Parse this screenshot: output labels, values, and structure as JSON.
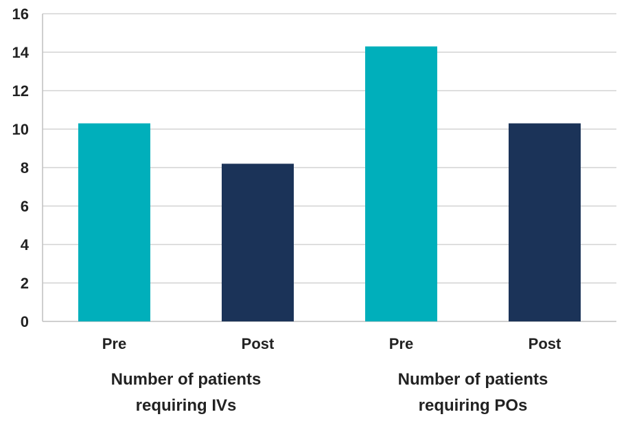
{
  "chart_data": {
    "type": "bar",
    "title": "",
    "xlabel": "",
    "ylabel": "",
    "ylim": [
      0,
      16
    ],
    "yticks": [
      0,
      2,
      4,
      6,
      8,
      10,
      12,
      14,
      16
    ],
    "grid": true,
    "legend": "none",
    "bars": [
      {
        "group": "Number of patients requiring IVs",
        "label": "Pre",
        "value": 10.3,
        "color": "#00AFBB"
      },
      {
        "group": "Number of patients requiring IVs",
        "label": "Post",
        "value": 8.2,
        "color": "#1B3358"
      },
      {
        "group": "Number of patients requiring POs",
        "label": "Pre",
        "value": 14.3,
        "color": "#00AFBB"
      },
      {
        "group": "Number of patients requiring POs",
        "label": "Post",
        "value": 10.3,
        "color": "#1B3358"
      }
    ],
    "groups": [
      {
        "lines": [
          "Number of patients",
          "requiring IVs"
        ]
      },
      {
        "lines": [
          "Number of patients",
          "requiring POs"
        ]
      }
    ]
  }
}
